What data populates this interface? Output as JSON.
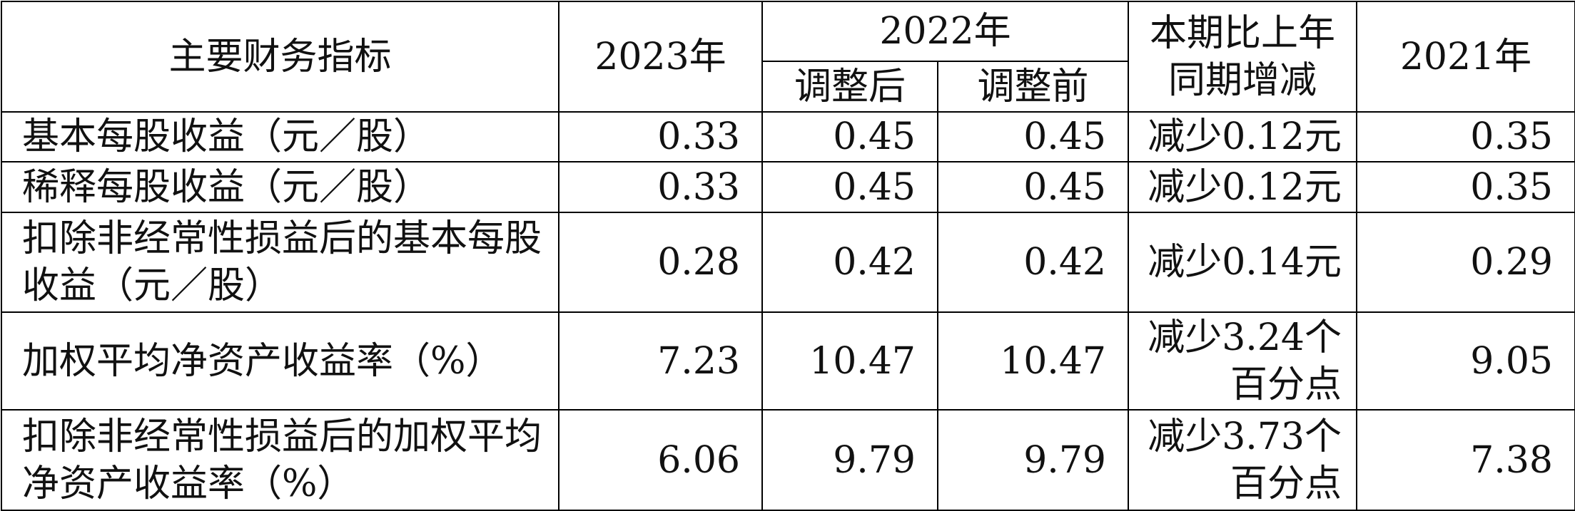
{
  "table": {
    "header": [
      "主要财务指标",
      "2023年",
      "2022年",
      "本期比上年同期增减",
      "2021年"
    ],
    "subheader": [
      "调整后",
      "调整前"
    ],
    "rows": [
      [
        "基本每股收益（元／股）",
        0.33,
        0.45,
        0.45,
        "减少0.12元",
        0.35
      ],
      [
        "稀释每股收益（元／股）",
        0.33,
        0.45,
        0.45,
        "减少0.12元",
        0.35
      ],
      [
        "扣除非经常性损益后的基本每股收益（元／股）",
        0.28,
        0.42,
        0.42,
        "减少0.14元",
        0.29
      ],
      [
        "加权平均净资产收益率（%）",
        7.23,
        10.47,
        10.47,
        "减少3.24个百分点",
        9.05
      ],
      [
        "扣除非经常性损益后的加权平均净资产收益率（%）",
        6.06,
        9.79,
        9.79,
        "减少3.73个百分点",
        7.38
      ]
    ]
  }
}
